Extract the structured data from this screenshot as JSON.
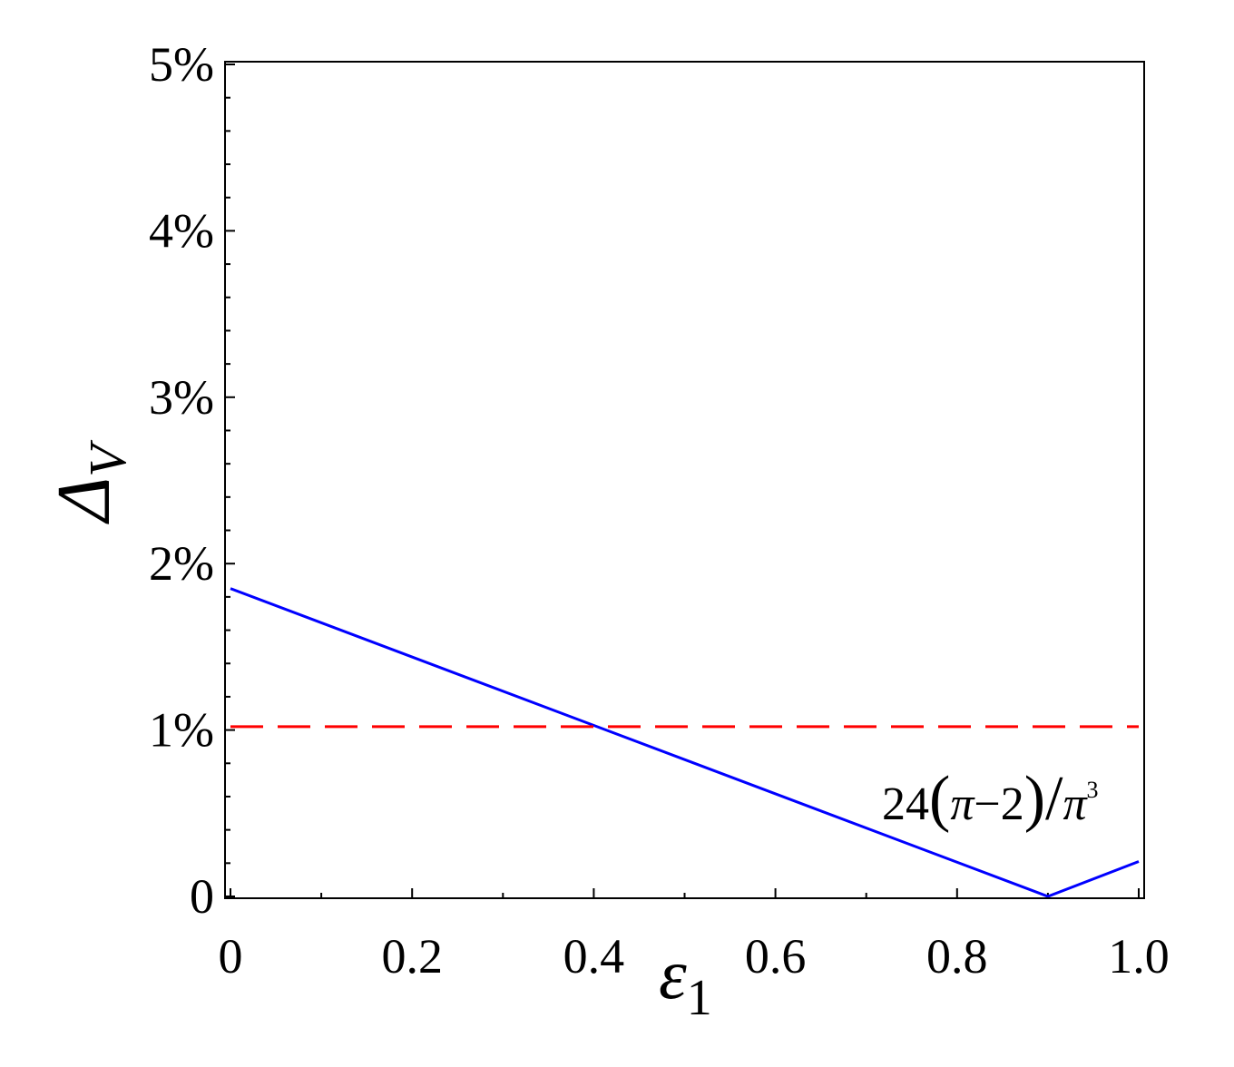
{
  "chart_data": {
    "type": "line",
    "title": "",
    "xlabel": {
      "base": "ε",
      "sub": "1"
    },
    "ylabel": {
      "base": "Δ",
      "sub": "V"
    },
    "xlim": [
      0,
      1
    ],
    "ylim": [
      0,
      5
    ],
    "x_ticks": [
      {
        "value": 0,
        "label": "0"
      },
      {
        "value": 0.2,
        "label": "0.2"
      },
      {
        "value": 0.4,
        "label": "0.4"
      },
      {
        "value": 0.6,
        "label": "0.6"
      },
      {
        "value": 0.8,
        "label": "0.8"
      },
      {
        "value": 1.0,
        "label": "1.0"
      }
    ],
    "y_ticks": [
      {
        "value": 0,
        "label": "0"
      },
      {
        "value": 1,
        "label": "1%"
      },
      {
        "value": 2,
        "label": "2%"
      },
      {
        "value": 3,
        "label": "3%"
      },
      {
        "value": 4,
        "label": "4%"
      },
      {
        "value": 5,
        "label": "5%"
      }
    ],
    "grid": false,
    "series": [
      {
        "color": "#0000ff",
        "style": "solid",
        "x": [
          0,
          0.9,
          1.0
        ],
        "y": [
          1.85,
          0.0,
          0.21
        ]
      },
      {
        "color": "#ff0000",
        "style": "dashed",
        "x": [
          0,
          1.0
        ],
        "y": [
          1.02,
          1.02
        ]
      }
    ],
    "annotations": [
      {
        "text": "24(π−2)/π³",
        "parts": {
          "coef": "24",
          "paren_open": "(",
          "pi": "π",
          "minus": "−",
          "two": "2",
          "paren_close": ")",
          "slash": "/",
          "pi2": "π",
          "exp": "3"
        }
      }
    ]
  }
}
